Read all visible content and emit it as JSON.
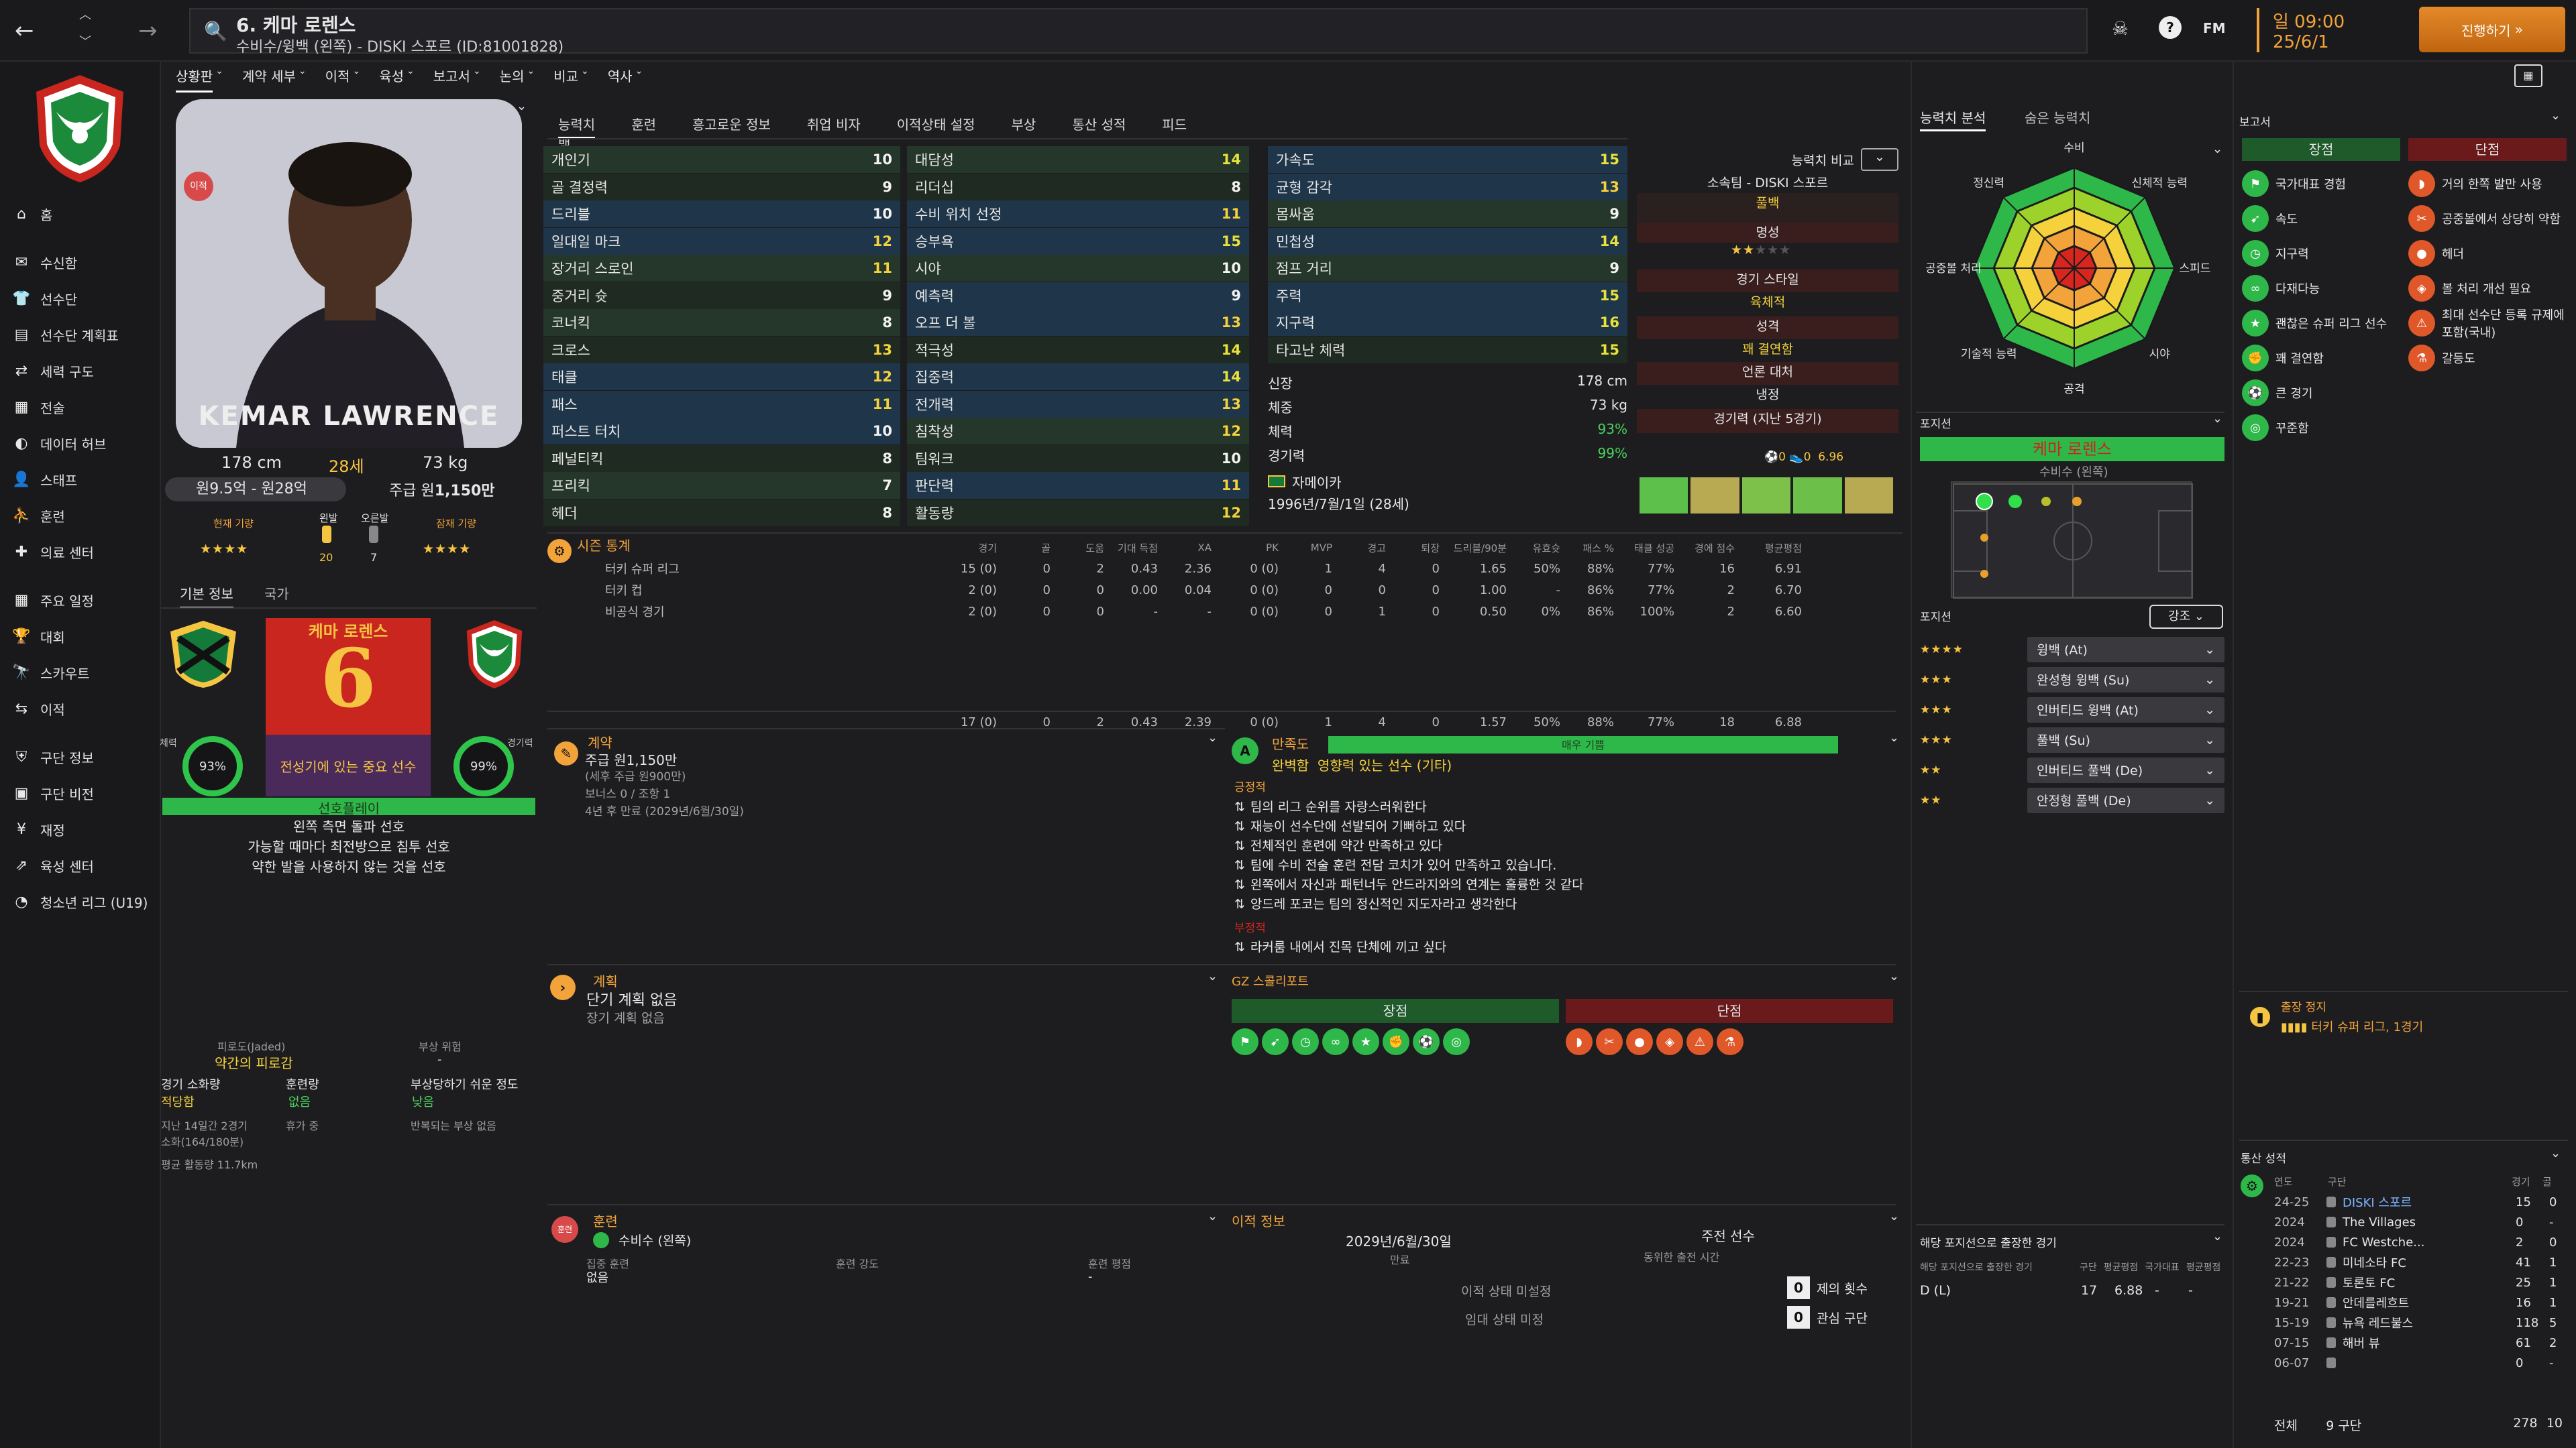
{
  "title": {
    "name": "6. 케마 로렌스",
    "sub": "수비수/윙백 (왼쪽) - DISKI 스포르 (ID:81001828)",
    "date_top": "일 09:00",
    "date_bottom": "25/6/1",
    "continue": "진행하기",
    "back": "←",
    "forward": "→"
  },
  "nav": [
    "홈",
    "수신함",
    "선수단",
    "선수단 계획표",
    "세력 구도",
    "전술",
    "데이터 허브",
    "스태프",
    "훈련",
    "의료 센터",
    "주요 일정",
    "대회",
    "스카우트",
    "이적",
    "구단 정보",
    "구단 비전",
    "재정",
    "육성 센터",
    "청소년 리그 (U19)"
  ],
  "subtabs": [
    "상황판",
    "계약 세부",
    "이적",
    "육성",
    "보고서",
    "논의",
    "비교",
    "역사"
  ],
  "player": {
    "photo_caption": "KEMAR LAWRENCE",
    "height": "178 cm",
    "age": "28세",
    "weight": "73 kg",
    "value": "원9.5억 - 원28억",
    "wage_label": "주급 원",
    "wage": "1,150만",
    "current_ability": "현재 기량",
    "potential": "잠재 기량",
    "left_foot": "왼발",
    "right_foot": "오른발",
    "left_num": "20",
    "right_num": "7",
    "stars_cur": "★★★★",
    "stars_pot": "★★★★",
    "badge": "이적"
  },
  "basic_tabs": [
    "기본 정보",
    "국가"
  ],
  "card": {
    "name": "케마 로렌스",
    "number": "6",
    "role": "전성기에 있는 중요 선수",
    "cond_label": "체력",
    "cond": "93%",
    "sharp_label": "경기력",
    "sharp": "99%",
    "prefs_head": "선호플레이",
    "prefs": [
      "왼쪽 측면 돌파 선호",
      "가능할 때마다 최전방으로 침투 선호",
      "약한 발을 사용하지 않는 것을 선호"
    ]
  },
  "fatigue": {
    "fatigue_label": "피로도(Jaded)",
    "risk_label": "부상 위험",
    "risk_val": "-",
    "fatigue_val": "약간의 피로감",
    "load_label": "경기 소화량",
    "load_val": "적당함",
    "train_label": "훈련량",
    "train_val": "없음",
    "prone_label": "부상당하기 쉬운 정도",
    "prone_val": "낮음",
    "note1": "지난 14일간 2경기",
    "note2": "소화(164/180분)",
    "note3": "휴가 중",
    "note4": "반복되는 부상 없음",
    "avg": "평균 활동량 11.7km"
  },
  "attr_tabs": [
    "능력치",
    "훈련",
    "흥고로운 정보",
    "취업 비자",
    "이적상태 설정",
    "부상",
    "통산 성적",
    "피드백"
  ],
  "col1": [
    [
      "개인기",
      "10"
    ],
    [
      "골 결정력",
      "9"
    ],
    [
      "드리블",
      "10"
    ],
    [
      "일대일 마크",
      "12"
    ],
    [
      "장거리 스로인",
      "11"
    ],
    [
      "중거리 슛",
      "9"
    ],
    [
      "코너킥",
      "8"
    ],
    [
      "크로스",
      "13"
    ],
    [
      "태클",
      "12"
    ],
    [
      "패스",
      "11"
    ],
    [
      "퍼스트 터치",
      "10"
    ],
    [
      "페널티킥",
      "8"
    ],
    [
      "프리킥",
      "7"
    ],
    [
      "헤더",
      "8"
    ]
  ],
  "col2": [
    [
      "대담성",
      "14"
    ],
    [
      "리더십",
      "8"
    ],
    [
      "수비 위치 선정",
      "11"
    ],
    [
      "승부욕",
      "15"
    ],
    [
      "시야",
      "10"
    ],
    [
      "예측력",
      "9"
    ],
    [
      "오프 더 볼",
      "13"
    ],
    [
      "적극성",
      "14"
    ],
    [
      "집중력",
      "14"
    ],
    [
      "전개력",
      "13"
    ],
    [
      "침착성",
      "12"
    ],
    [
      "팀워크",
      "10"
    ],
    [
      "판단력",
      "11"
    ],
    [
      "활동량",
      "12"
    ]
  ],
  "col3": [
    [
      "가속도",
      "15"
    ],
    [
      "균형 감각",
      "13"
    ],
    [
      "몸싸움",
      "9"
    ],
    [
      "민첩성",
      "14"
    ],
    [
      "점프 거리",
      "9"
    ],
    [
      "주력",
      "15"
    ],
    [
      "지구력",
      "16"
    ],
    [
      "타고난 체력",
      "15"
    ]
  ],
  "phys": {
    "height_l": "신장",
    "height": "178 cm",
    "weight_l": "체중",
    "weight": "73 kg",
    "cond_l": "체력",
    "cond": "93%",
    "sharp_l": "경기력",
    "sharp": "99%",
    "nation": "자메이카",
    "birth": "1996년/7월/1일 (28세)",
    "more": "..."
  },
  "info_right": {
    "compare": "능력치 비교",
    "club_label": "소속팀 - DISKI 스포르",
    "club_val": "풀백",
    "rep_label": "명성",
    "style_label": "경기 스타일",
    "style_val": "육체적",
    "pers_label": "성격",
    "pers_val": "꽤 결연함",
    "media_label": "언론 대처",
    "media_val": "냉정",
    "form_label": "경기력 (지난 5경기)",
    "form_rating": "6.96",
    "g": "0",
    "a": "0"
  },
  "stats": {
    "title": "시즌 통계",
    "headers": [
      "경기",
      "골",
      "도움",
      "기대 득점",
      "XA",
      "PK",
      "MVP",
      "경고",
      "퇴장",
      "드리블/90분",
      "유효슛",
      "패스 %",
      "태클 성공",
      "경에 점수",
      "평균평점"
    ],
    "rows": [
      [
        "터키 슈퍼 리그",
        "15 (0)",
        "0",
        "2",
        "0.43",
        "2.36",
        "0 (0)",
        "1",
        "4",
        "0",
        "1.65",
        "50%",
        "88%",
        "77%",
        "16",
        "6.91"
      ],
      [
        "터키 컵",
        "2 (0)",
        "0",
        "0",
        "0.00",
        "0.04",
        "0 (0)",
        "0",
        "0",
        "0",
        "1.00",
        "-",
        "86%",
        "77%",
        "2",
        "6.70"
      ],
      [
        "비공식 경기",
        "2 (0)",
        "0",
        "0",
        "-",
        "-",
        "0 (0)",
        "0",
        "1",
        "0",
        "0.50",
        "0%",
        "86%",
        "100%",
        "2",
        "6.60"
      ]
    ],
    "total": [
      "17 (0)",
      "0",
      "2",
      "0.43",
      "2.39",
      "0 (0)",
      "1",
      "4",
      "0",
      "1.57",
      "50%",
      "88%",
      "77%",
      "18",
      "6.88"
    ]
  },
  "contract": {
    "title": "계약",
    "wage": "주급 원1,150만",
    "sub": "(세후 주급 원900만)",
    "bonus": "보너스 0 / 조항 1",
    "expiry": "4년 후 만료 (2029년/6월/30일)"
  },
  "happiness": {
    "title": "만족도",
    "level": "매우 기쁨",
    "role": "완벽함",
    "role2": "영향력 있는 선수 (기타)",
    "pos_title": "긍정적",
    "pos": [
      "팀의 리그 순위를 자랑스러워한다",
      "재능이 선수단에 선발되어 기뻐하고 있다",
      "전체적인 훈련에 약간 만족하고 있다",
      "팀에 수비 전술 훈련 전담 코치가 있어 만족하고 있습니다.",
      "왼쪽에서 자신과 패턴너두 안드라지와의 연계는 훌륭한 것 같다",
      "앙드레 포코는 팀의 정신적인 지도자라고 생각한다"
    ],
    "neg_title": "부정적",
    "neg": [
      "라커룸 내에서 진목 단체에 끼고 싶다"
    ]
  },
  "plans": {
    "title": "계획",
    "short": "단기 계획 없음",
    "long": "장기 계획 없음"
  },
  "gz": {
    "title": "GZ 스콜리포트",
    "pro": "장점",
    "con": "단점"
  },
  "training": {
    "title": "훈련",
    "pos": "수비수 (왼쪽)",
    "focus_l": "집중 훈련",
    "focus": "없음",
    "intensity_l": "훈련 강도",
    "rating_l": "훈련 평점",
    "rating": "-"
  },
  "transfer": {
    "title": "이적 정보",
    "expiry": "2029년/6월/30일",
    "expiry_l": "만료",
    "main_l": "주전 선수",
    "main_sub": "동위한 출전 시간",
    "status1": "이적 상태 미설정",
    "status2": "임대 상태 미정",
    "offers": "0",
    "offers_l": "제의 횟수",
    "interest": "0",
    "interest_l": "관심 구단"
  },
  "analysis": {
    "tab1": "능력치 분석",
    "tab2": "숨은 능력치",
    "labels": [
      "수비",
      "신체적 능력",
      "스피드",
      "시야",
      "공격",
      "기술적 능력",
      "공중볼 처리",
      "정신력"
    ]
  },
  "position": {
    "title": "포지션",
    "player": "케마 로렌스",
    "role": "수비수 (왼쪽)",
    "roles_title": "포지션",
    "emph": "강조",
    "roles": [
      [
        "★★★★",
        "윙백 (At)"
      ],
      [
        "★★★",
        "완성형 윙백 (Su)"
      ],
      [
        "★★★",
        "인버티드 윙백 (At)"
      ],
      [
        "★★★",
        "풀백 (Su)"
      ],
      [
        "★★",
        "인버티드 풀백 (De)"
      ],
      [
        "★★",
        "안정형 풀백 (De)"
      ]
    ]
  },
  "apps": {
    "title": "해당 포지션으로 출장한 경기",
    "sub": "해당 포지션으로 출장한 경기",
    "cols": [
      "구단",
      "평균평점",
      "국가대표",
      "평균평점"
    ],
    "row": [
      "D (L)",
      "17",
      "6.88",
      "-",
      "-"
    ]
  },
  "reports": {
    "title": "보고서",
    "pro": "장점",
    "con": "단점",
    "pros": [
      "국가대표 경험",
      "속도",
      "지구력",
      "다재다능",
      "괜찮은 슈퍼 리그 선수",
      "꽤 결연함",
      "큰 경기",
      "꾸준함"
    ],
    "cons": [
      "거의 한쪽 발만 사용",
      "공중볼에서 상당히 약함",
      "헤더",
      "볼 처리 개선 필요",
      "최대 선수단 등록 규제에 포함(국내)",
      "갈등도"
    ]
  },
  "suspension": {
    "title": "출장 정지",
    "val": "터키 슈퍼 리그, 1경기"
  },
  "career": {
    "title": "통산 성적",
    "cols": [
      "연도",
      "구단",
      "경기",
      "골"
    ],
    "rows": [
      [
        "24-25",
        "DISKI 스포르",
        "15",
        "0"
      ],
      [
        "2024",
        "The Villages",
        "0",
        "-"
      ],
      [
        "2024",
        "FC Westche...",
        "2",
        "0"
      ],
      [
        "22-23",
        "미네소타 FC",
        "41",
        "1"
      ],
      [
        "21-22",
        "토론토 FC",
        "25",
        "1"
      ],
      [
        "19-21",
        "안데를레흐트",
        "16",
        "1"
      ],
      [
        "15-19",
        "뉴욕 레드불스",
        "118",
        "5"
      ],
      [
        "07-15",
        "해버 뷰",
        "61",
        "2"
      ],
      [
        "06-07",
        "",
        "0",
        "-"
      ]
    ],
    "total_l": "전체",
    "total_clubs": "9 구단",
    "total_apps": "278",
    "total_goals": "10"
  },
  "colors": {
    "accent": "#f2a33a",
    "green": "#2fb84a",
    "red": "#c8261e",
    "gold": "#f5c542"
  }
}
